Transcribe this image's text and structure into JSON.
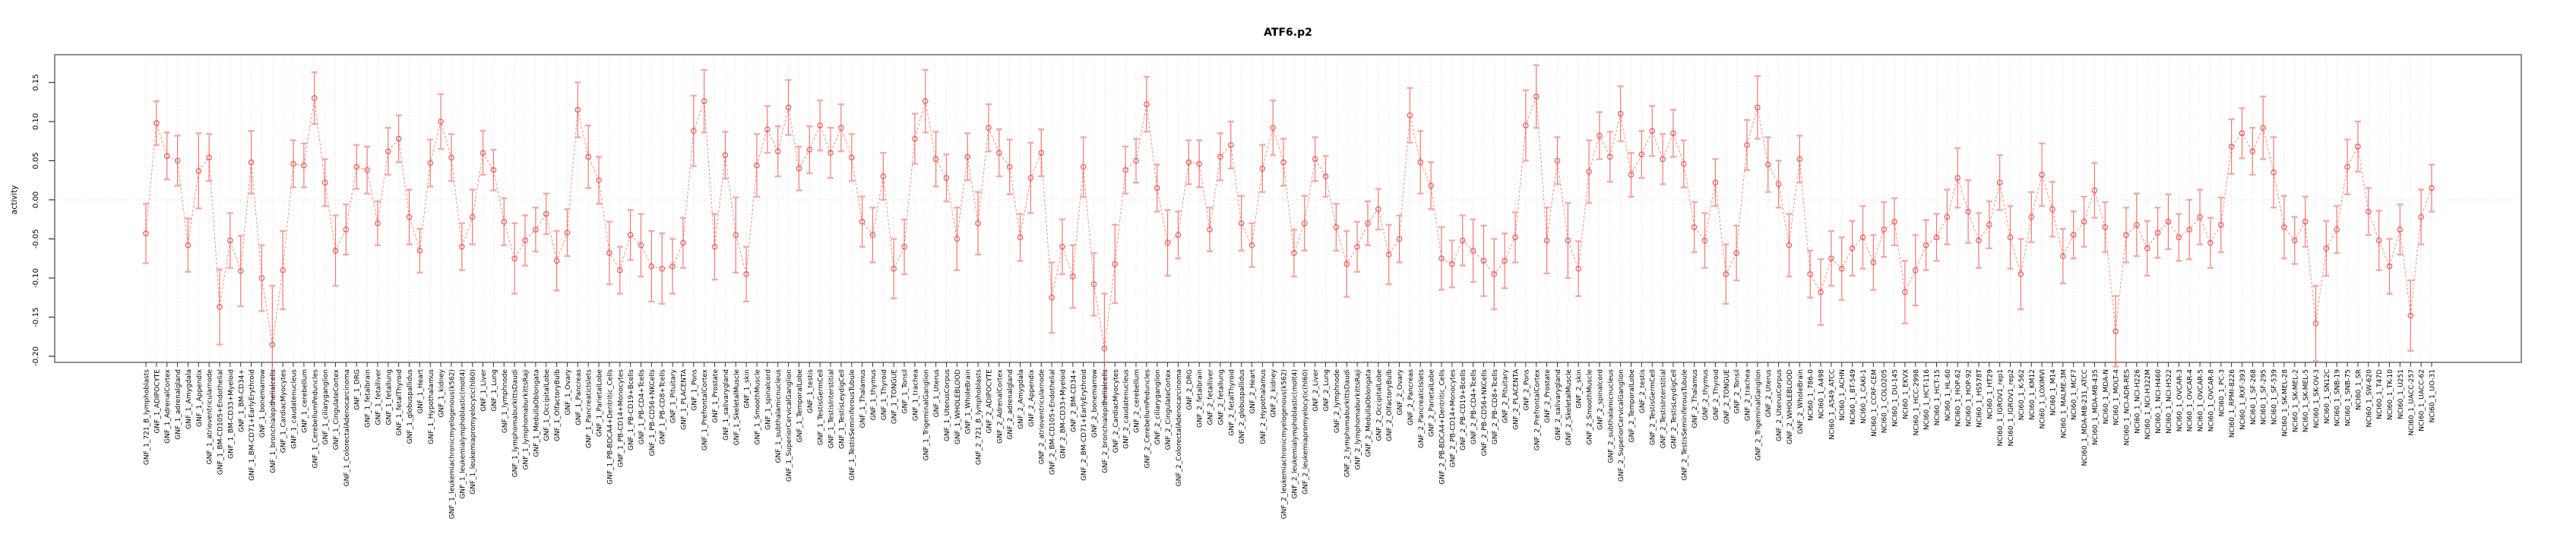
{
  "title": "ATF6.p2",
  "chart_data": {
    "type": "scatter",
    "title": "ATF6.p2",
    "xlabel": "",
    "ylabel": "activity",
    "ylim": [
      -0.215,
      0.175
    ],
    "yticks": [
      0.15,
      0.1,
      0.05,
      0.0,
      -0.05,
      -0.1,
      -0.15,
      -0.2
    ],
    "grid": "vertical dotted line per category",
    "zero_line": true,
    "legend": "none",
    "point_style": "open circle with vertical error bars and capped whiskers, dashed connecting line",
    "colors": {
      "point": "#ee5a52",
      "connector": "#f57d76",
      "error_bar": "#ee5a52",
      "error_cap": "#f7a8a3",
      "grid_line": "#d9d9d9",
      "zero_line": "#e0e0e0",
      "frame": "#909090",
      "tick": "#333333",
      "text": "#000000",
      "background": "#ffffff"
    },
    "categories": [
      "GNF_1_721_B_lymphoblasts",
      "GNF_1_ADIPOCYTE",
      "GNF_1_AdrenalCortex",
      "GNF_1_adrenalgland",
      "GNF_1_Amygdala",
      "GNF_1_Appendix",
      "GNF_1_atrioventricularnode",
      "GNF_1_BM-CD105+Endothelial",
      "GNF_1_BM-CD33+Myeloid",
      "GNF_1_BM-CD34+",
      "GNF_1_BM-CD71+EarlyErythroid",
      "GNF_1_bonemarrow",
      "GNF_1_bronchialepithelialcells",
      "GNF_1_CardiacMyocytes",
      "GNF_1_caudatenucleus",
      "GNF_1_cerebellum",
      "GNF_1_CerebellumPeduncles",
      "GNF_1_ciliaryganglion",
      "GNF_1_CingulateCortex",
      "GNF_1_ColorectalAdenocarcinoma",
      "GNF_1_DRG",
      "GNF_1_fetalbrain",
      "GNF_1_fetalliver",
      "GNF_1_fetallung",
      "GNF_1_fetalThyroid",
      "GNF_1_globuspallidus",
      "GNF_1_Heart",
      "GNF_1_Hypothalamus",
      "GNF_1_kidney",
      "GNF_1_leukemiachronicmyelogenous(k562)",
      "GNF_1_leukemialymphoblastic(molt4)",
      "GNF_1_leukemiapromyelocytic(hl60)",
      "GNF_1_Liver",
      "GNF_1_Lung",
      "GNF_1_lymphnode",
      "GNF_1_lymphomaburkittsDaudi",
      "GNF_1_lymphomaburkittsRaji",
      "GNF_1_MedullaOblongata",
      "GNF_1_OccipitalLobe",
      "GNF_1_OlfactoryBulb",
      "GNF_1_Ovary",
      "GNF_1_Pancreas",
      "GNF_1_PancreaticIslets",
      "GNF_1_ParietalLobe",
      "GNF_1_PB-BDCA4+Dentritic_Cells",
      "GNF_1_PB-CD14+Monocytes",
      "GNF_1_PB-CD19+Bcells",
      "GNF_1_PB-CD4+Tcells",
      "GNF_1_PB-CD56+NKCells",
      "GNF_1_PB-CD8+Tcells",
      "GNF_1_Pituitary",
      "GNF_1_PLACENTA",
      "GNF_1_Pons",
      "GNF_1_PrefrontalCortex",
      "GNF_1_Prostate",
      "GNF_1_salivarygland",
      "GNF_1_SkeletalMuscle",
      "GNF_1_skin",
      "GNF_1_SmoothMuscle",
      "GNF_1_spinalcord",
      "GNF_1_subthalamicnucleus",
      "GNF_1_SuperiorCervicalGanglion",
      "GNF_1_TemporalLobe",
      "GNF_1_testis",
      "GNF_1_TestisGermCell",
      "GNF_1_TestisInterstitial",
      "GNF_1_TestisLeydigCell",
      "GNF_1_TestisSeminiferousTubule",
      "GNF_1_Thalamus",
      "GNF_1_thymus",
      "GNF_1_Thyroid",
      "GNF_1_TONGUE",
      "GNF_1_Tonsil",
      "GNF_1_trachea",
      "GNF_1_TrigeminalGanglion",
      "GNF_1_Uterus",
      "GNF_1_UterusCorpus",
      "GNF_1_WHOLEBLOOD",
      "GNF_1_WholeBrain",
      "GNF_2_721_B_lymphoblasts",
      "GNF_2_ADIPOCYTE",
      "GNF_2_AdrenalCortex",
      "GNF_2_adrenalgland",
      "GNF_2_Amygdala",
      "GNF_2_Appendix",
      "GNF_2_atrioventricularnode",
      "GNF_2_BM-CD105+Endothelial",
      "GNF_2_BM-CD33+Myeloid",
      "GNF_2_BM-CD34+",
      "GNF_2_BM-CD71+EarlyErythroid",
      "GNF_2_bonemarrow",
      "GNF_2_bronchialepithelialcells",
      "GNF_2_CardiacMyocytes",
      "GNF_2_caudatenucleus",
      "GNF_2_cerebellum",
      "GNF_2_CerebellumPeduncles",
      "GNF_2_ciliaryganglion",
      "GNF_2_CingulateCortex",
      "GNF_2_ColorectalAdenocarcinoma",
      "GNF_2_DRG",
      "GNF_2_fetalbrain",
      "GNF_2_fetalliver",
      "GNF_2_fetallung",
      "GNF_2_fetalThyroid",
      "GNF_2_globuspallidus",
      "GNF_2_Heart",
      "GNF_2_Hypothalamus",
      "GNF_2_kidney",
      "GNF_2_leukemiachronicmyelogenous(k562)",
      "GNF_2_leukemialymphoblastic(molt4)",
      "GNF_2_leukemiapromyelocytic(hl60)",
      "GNF_2_Liver",
      "GNF_2_Lung",
      "GNF_2_lymphnode",
      "GNF_2_lymphomaburkittsDaudi",
      "GNF_2_lymphomaburkittsRaji",
      "GNF_2_MedullaOblongata",
      "GNF_2_OccipitalLobe",
      "GNF_2_OlfactoryBulb",
      "GNF_2_Ovary",
      "GNF_2_Pancreas",
      "GNF_2_PancreaticIslets",
      "GNF_2_ParietalLobe",
      "GNF_2_PB-BDCA4+Dentritic_Cells",
      "GNF_2_PB-CD14+Monocytes",
      "GNF_2_PB-CD19+Bcells",
      "GNF_2_PB-CD4+Tcells",
      "GNF_2_PB-CD56+NKCells",
      "GNF_2_PB-CD8+Tcells",
      "GNF_2_Pituitary",
      "GNF_2_PLACENTA",
      "GNF_2_Pons",
      "GNF_2_PrefrontalCortex",
      "GNF_2_Prostate",
      "GNF_2_salivarygland",
      "GNF_2_SkeletalMuscle",
      "GNF_2_skin",
      "GNF_2_SmoothMuscle",
      "GNF_2_spinalcord",
      "GNF_2_subthalamicnucleus",
      "GNF_2_SuperiorCervicalGanglion",
      "GNF_2_TemporalLobe",
      "GNF_2_testis",
      "GNF_2_TestisGermCell",
      "GNF_2_TestisInterstitial",
      "GNF_2_TestisLeydigCell",
      "GNF_2_TestisSeminiferousTubule",
      "GNF_2_Thalamus",
      "GNF_2_thymus",
      "GNF_2_Thyroid",
      "GNF_2_TONGUE",
      "GNF_2_Tonsil",
      "GNF_2_trachea",
      "GNF_2_TrigeminalGanglion",
      "GNF_2_Uterus",
      "GNF_2_UterusCorpus",
      "GNF_2_WHOLEBLOOD",
      "GNF_2_WholeBrain",
      "NCI60_1_786-0",
      "NCI60_1_A498",
      "NCI60_1_A549_ATCC",
      "NCI60_1_ACHN",
      "NCI60_1_BT-549",
      "NCI60_1_CAKI-1",
      "NCI60_1_CCRF-CEM",
      "NCI60_1_COLO205",
      "NCI60_1_DU-145",
      "NCI60_1_EKVX",
      "NCI60_1_HCC-2998",
      "NCI60_1_HCT-116",
      "NCI60_1_HCT-15",
      "NCI60_1_HL-60",
      "NCI60_1_HOP-62",
      "NCI60_1_HOP-92",
      "NCI60_1_HS578T",
      "NCI60_1_HT29",
      "NCI60_1_IGROV1_rep1",
      "NCI60_1_IGROV1_rep2",
      "NCI60_1_K-562",
      "NCI60_1_KM12",
      "NCI60_1_LOXIMVI",
      "NCI60_1_M14",
      "NCI60_1_MALME-3M",
      "NCI60_1_MCF7",
      "NCI60_1_MDA-MB-231_ATCC",
      "NCI60_1_MDA-MB-435",
      "NCI60_1_MDA-N",
      "NCI60_1_MOLT-4",
      "NCI60_1_NCI-ADR-RES",
      "NCI60_1_NCI-H226",
      "NCI60_1_NCI-H322M",
      "NCI60_1_NCI-H460",
      "NCI60_1_NCI-H522",
      "NCI60_1_OVCAR-3",
      "NCI60_1_OVCAR-4",
      "NCI60_1_OVCAR-5",
      "NCI60_1_OVCAR-8",
      "NCI60_1_PC-3",
      "NCI60_1_RPMI-8226",
      "NCI60_1_RXF-393",
      "NCI60_1_SF-268",
      "NCI60_1_SF-295",
      "NCI60_1_SF-539",
      "NCI60_1_SK-MEL-28",
      "NCI60_1_SK-MEL-2",
      "NCI60_1_SK-MEL-5",
      "NCI60_1_SK-OV-3",
      "NCI60_1_SN12C",
      "NCI60_1_SNB-19",
      "NCI60_1_SNB-75",
      "NCI60_1_SR",
      "NCI60_1_SW-620",
      "NCI60_1_T47D",
      "NCI60_1_TK-10",
      "NCI60_1_U251",
      "NCI60_1_UACC-257",
      "NCI60_1_UACC-62",
      "NCI60_1_UO-31"
    ],
    "values": [
      -0.043,
      0.098,
      0.056,
      0.05,
      -0.058,
      0.037,
      0.054,
      -0.137,
      -0.052,
      -0.091,
      0.048,
      -0.1,
      -0.185,
      -0.09,
      0.046,
      0.044,
      0.13,
      0.022,
      -0.065,
      -0.038,
      0.042,
      0.038,
      -0.03,
      0.062,
      0.078,
      -0.022,
      -0.065,
      0.047,
      0.1,
      0.054,
      -0.06,
      -0.022,
      0.06,
      0.038,
      -0.028,
      -0.075,
      -0.052,
      -0.038,
      -0.018,
      -0.078,
      -0.042,
      0.115,
      0.055,
      0.025,
      -0.068,
      -0.09,
      -0.045,
      -0.058,
      -0.085,
      -0.088,
      -0.085,
      -0.055,
      0.088,
      0.126,
      -0.06,
      0.057,
      -0.045,
      -0.095,
      0.044,
      0.09,
      0.062,
      0.118,
      0.04,
      0.064,
      0.095,
      0.06,
      0.092,
      0.054,
      -0.028,
      -0.045,
      0.03,
      -0.088,
      -0.06,
      0.078,
      0.126,
      0.052,
      0.028,
      -0.05,
      0.055,
      -0.03,
      0.092,
      0.06,
      0.042,
      -0.048,
      0.028,
      0.06,
      -0.125,
      -0.06,
      -0.098,
      0.042,
      -0.108,
      -0.19,
      -0.082,
      0.038,
      0.05,
      0.122,
      0.015,
      -0.055,
      -0.045,
      0.048,
      0.046,
      -0.038,
      0.055,
      0.07,
      -0.03,
      -0.058,
      0.04,
      0.092,
      0.048,
      -0.068,
      -0.03,
      0.052,
      0.03,
      -0.035,
      -0.082,
      -0.06,
      -0.03,
      -0.012,
      -0.07,
      -0.05,
      0.108,
      0.048,
      0.018,
      -0.075,
      -0.082,
      -0.052,
      -0.065,
      -0.078,
      -0.095,
      -0.078,
      -0.048,
      0.095,
      0.132,
      -0.052,
      0.05,
      -0.052,
      -0.088,
      0.036,
      0.082,
      0.055,
      0.11,
      0.032,
      0.058,
      0.088,
      0.052,
      0.085,
      0.046,
      -0.035,
      -0.052,
      0.022,
      -0.095,
      -0.068,
      0.07,
      0.118,
      0.045,
      0.02,
      -0.058,
      0.052,
      -0.095,
      -0.118,
      -0.075,
      -0.088,
      -0.062,
      -0.048,
      -0.08,
      -0.038,
      -0.028,
      -0.118,
      -0.09,
      -0.058,
      -0.048,
      -0.022,
      0.028,
      -0.015,
      -0.052,
      -0.032,
      0.022,
      -0.048,
      -0.095,
      -0.022,
      0.032,
      -0.012,
      -0.072,
      -0.045,
      -0.028,
      0.012,
      -0.035,
      -0.168,
      -0.045,
      -0.032,
      -0.062,
      -0.042,
      -0.028,
      -0.048,
      -0.038,
      -0.022,
      -0.055,
      -0.032,
      0.068,
      0.085,
      0.062,
      0.092,
      0.035,
      -0.035,
      -0.052,
      -0.028,
      -0.158,
      -0.062,
      -0.038,
      0.042,
      0.068,
      -0.015,
      -0.052,
      -0.085,
      -0.038,
      -0.148,
      -0.022,
      0.015
    ],
    "errors": [
      0.038,
      0.028,
      0.03,
      0.032,
      0.034,
      0.048,
      0.03,
      0.048,
      0.035,
      0.045,
      0.04,
      0.042,
      0.075,
      0.05,
      0.03,
      0.028,
      0.033,
      0.03,
      0.045,
      0.032,
      0.028,
      0.03,
      0.028,
      0.03,
      0.03,
      0.035,
      0.028,
      0.03,
      0.035,
      0.03,
      0.03,
      0.035,
      0.028,
      0.026,
      0.03,
      0.045,
      0.032,
      0.028,
      0.026,
      0.038,
      0.03,
      0.035,
      0.04,
      0.03,
      0.04,
      0.03,
      0.032,
      0.04,
      0.045,
      0.045,
      0.035,
      0.032,
      0.045,
      0.04,
      0.042,
      0.03,
      0.048,
      0.035,
      0.04,
      0.03,
      0.032,
      0.035,
      0.028,
      0.03,
      0.032,
      0.032,
      0.03,
      0.03,
      0.032,
      0.035,
      0.03,
      0.038,
      0.035,
      0.032,
      0.04,
      0.035,
      0.03,
      0.04,
      0.03,
      0.04,
      0.03,
      0.03,
      0.035,
      0.03,
      0.045,
      0.03,
      0.045,
      0.035,
      0.04,
      0.038,
      0.04,
      0.07,
      0.05,
      0.03,
      0.028,
      0.035,
      0.03,
      0.042,
      0.03,
      0.028,
      0.03,
      0.028,
      0.03,
      0.03,
      0.035,
      0.028,
      0.03,
      0.035,
      0.03,
      0.03,
      0.035,
      0.028,
      0.026,
      0.03,
      0.042,
      0.032,
      0.028,
      0.026,
      0.038,
      0.03,
      0.035,
      0.04,
      0.03,
      0.04,
      0.03,
      0.032,
      0.04,
      0.045,
      0.045,
      0.035,
      0.032,
      0.045,
      0.04,
      0.042,
      0.03,
      0.048,
      0.035,
      0.04,
      0.03,
      0.032,
      0.035,
      0.028,
      0.03,
      0.032,
      0.032,
      0.03,
      0.03,
      0.032,
      0.035,
      0.03,
      0.038,
      0.035,
      0.032,
      0.04,
      0.035,
      0.03,
      0.04,
      0.03,
      0.03,
      0.042,
      0.035,
      0.04,
      0.035,
      0.04,
      0.035,
      0.035,
      0.03,
      0.04,
      0.045,
      0.032,
      0.03,
      0.035,
      0.038,
      0.04,
      0.035,
      0.03,
      0.035,
      0.04,
      0.045,
      0.032,
      0.04,
      0.035,
      0.035,
      0.03,
      0.032,
      0.035,
      0.032,
      0.045,
      0.035,
      0.04,
      0.035,
      0.032,
      0.035,
      0.03,
      0.038,
      0.035,
      0.032,
      0.035,
      0.035,
      0.032,
      0.03,
      0.04,
      0.045,
      0.04,
      0.03,
      0.032,
      0.048,
      0.035,
      0.03,
      0.035,
      0.032,
      0.03,
      0.038,
      0.035,
      0.032,
      0.045,
      0.035,
      0.03
    ]
  }
}
